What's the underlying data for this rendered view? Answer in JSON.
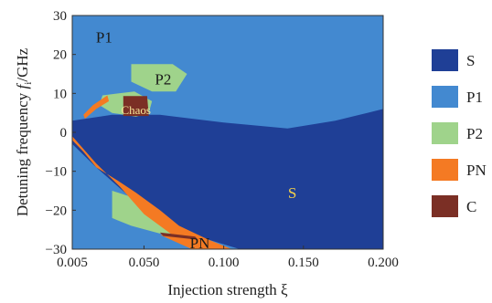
{
  "chart_data": {
    "type": "heatmap",
    "title": "",
    "xlabel": "Injection strength ξ",
    "ylabel": "Detuning frequency f_i/GHz",
    "ylabel_main": "Detuning frequency ",
    "ylabel_italic": "f",
    "ylabel_sub": "i",
    "ylabel_tail": "/GHz",
    "xlim": [
      0.005,
      0.2
    ],
    "ylim": [
      -30,
      30
    ],
    "xticks": [
      "0.005",
      "0.050",
      "0.100",
      "0.150",
      "0.200"
    ],
    "yticks": [
      "30",
      "20",
      "10",
      "0",
      "−10",
      "−20",
      "−30"
    ],
    "categories": [
      {
        "key": "S",
        "label": "S",
        "color": "#1f3f96"
      },
      {
        "key": "P1",
        "label": "P1",
        "color": "#4389d0"
      },
      {
        "key": "P2",
        "label": "P2",
        "color": "#9fd38b"
      },
      {
        "key": "PN",
        "label": "PN",
        "color": "#f47a23"
      },
      {
        "key": "C",
        "label": "C",
        "color": "#7b2f25"
      }
    ],
    "regions": [
      {
        "label": "S",
        "points": [
          [
            0.005,
            3
          ],
          [
            0.03,
            4.5
          ],
          [
            0.06,
            4.5
          ],
          [
            0.1,
            2.5
          ],
          [
            0.14,
            1
          ],
          [
            0.17,
            3
          ],
          [
            0.19,
            5
          ],
          [
            0.2,
            6
          ],
          [
            0.2,
            -30
          ],
          [
            0.11,
            -30
          ],
          [
            0.07,
            -25
          ],
          [
            0.045,
            -18
          ],
          [
            0.02,
            -9
          ],
          [
            0.005,
            -3
          ]
        ]
      },
      {
        "label": "P2",
        "points": [
          [
            0.042,
            17.5
          ],
          [
            0.068,
            17.5
          ],
          [
            0.077,
            15
          ],
          [
            0.07,
            10.5
          ],
          [
            0.055,
            10.5
          ],
          [
            0.042,
            13
          ]
        ]
      },
      {
        "label": "P2",
        "points": [
          [
            0.024,
            9.5
          ],
          [
            0.044,
            10.5
          ],
          [
            0.055,
            8
          ],
          [
            0.053,
            5
          ],
          [
            0.045,
            4
          ],
          [
            0.03,
            5
          ],
          [
            0.022,
            7
          ]
        ]
      },
      {
        "label": "C",
        "points": [
          [
            0.037,
            9.3
          ],
          [
            0.052,
            9.3
          ],
          [
            0.053,
            4.2
          ],
          [
            0.037,
            4.2
          ]
        ]
      },
      {
        "label": "P2",
        "points": [
          [
            0.03,
            -15
          ],
          [
            0.045,
            -17
          ],
          [
            0.068,
            -23
          ],
          [
            0.075,
            -26
          ],
          [
            0.06,
            -26
          ],
          [
            0.042,
            -24
          ],
          [
            0.03,
            -22
          ]
        ]
      },
      {
        "label": "PN",
        "points": [
          [
            0.005,
            -2
          ],
          [
            0.012,
            -5
          ],
          [
            0.02,
            -9
          ],
          [
            0.032,
            -12
          ],
          [
            0.045,
            -15.5
          ],
          [
            0.06,
            -20
          ],
          [
            0.072,
            -24
          ],
          [
            0.09,
            -27.5
          ],
          [
            0.105,
            -30
          ],
          [
            0.09,
            -30
          ],
          [
            0.07,
            -27
          ],
          [
            0.05,
            -21
          ],
          [
            0.035,
            -14
          ],
          [
            0.02,
            -8
          ],
          [
            0.005,
            -1
          ]
        ]
      },
      {
        "label": "PN",
        "points": [
          [
            0.013,
            3.5
          ],
          [
            0.02,
            6
          ],
          [
            0.028,
            8
          ],
          [
            0.027,
            9.5
          ],
          [
            0.018,
            7
          ],
          [
            0.012,
            4.5
          ]
        ]
      },
      {
        "label": "PN",
        "points": [
          [
            0.06,
            -26.3
          ],
          [
            0.085,
            -27.5
          ],
          [
            0.097,
            -30
          ],
          [
            0.08,
            -30
          ]
        ]
      },
      {
        "label": "C",
        "points": [
          [
            0.06,
            -25.7
          ],
          [
            0.082,
            -26.8
          ],
          [
            0.084,
            -27.6
          ],
          [
            0.062,
            -26.6
          ]
        ]
      }
    ],
    "background_category": "P1",
    "annotations": [
      {
        "text": "P1",
        "x": 0.025,
        "y": 24,
        "color": "#1a1a1a",
        "size": 17
      },
      {
        "text": "P2",
        "x": 0.062,
        "y": 13.2,
        "color": "#1a1a1a",
        "size": 17
      },
      {
        "text": "Chaos",
        "x": 0.045,
        "y": 5.4,
        "color": "#f6e79a",
        "size": 13
      },
      {
        "text": "S",
        "x": 0.143,
        "y": -16,
        "color": "#f4d14a",
        "size": 17
      },
      {
        "text": "PN",
        "x": 0.085,
        "y": -28.8,
        "color": "#1a1a1a",
        "size": 17
      }
    ],
    "grid": false,
    "legend_position": "right"
  }
}
